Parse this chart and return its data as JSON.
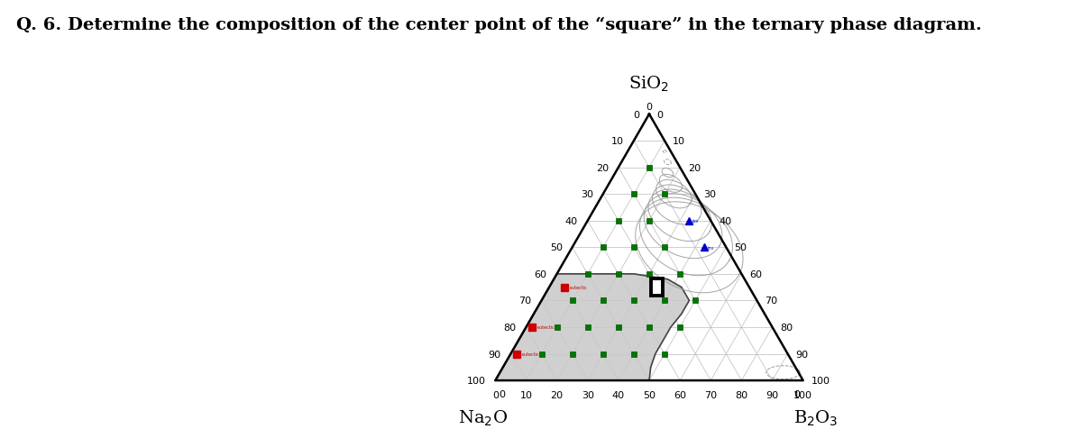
{
  "title": "Q. 6. Determine the composition of the center point of the “square” in the ternary phase diagram.",
  "grid_color": "#bbbbbb",
  "grid_linewidth": 0.5,
  "triangle_linewidth": 1.8,
  "triangle_color": "#000000",
  "background_color": "#ffffff",
  "shaded_region_color": "#c8c8c8",
  "shaded_region_alpha": 0.85,
  "curve_color": "#999999",
  "fontsize_title": 14,
  "fontsize_labels": 13,
  "fontsize_ticks": 8,
  "green_dot_sio2": [
    10,
    10,
    10,
    10,
    10,
    20,
    20,
    20,
    20,
    20,
    30,
    30,
    30,
    30,
    30,
    40,
    40,
    40,
    40,
    50,
    50,
    50,
    60,
    60,
    70,
    70,
    80
  ],
  "green_dot_na2o": [
    80,
    70,
    60,
    50,
    40,
    70,
    60,
    50,
    40,
    30,
    60,
    50,
    40,
    30,
    20,
    50,
    40,
    30,
    20,
    40,
    30,
    20,
    30,
    20,
    20,
    10,
    10
  ],
  "red_points_sio2": [
    35,
    20,
    10
  ],
  "red_points_na2o": [
    60,
    78,
    88
  ],
  "blue_points_sio2": [
    50,
    60
  ],
  "blue_points_na2o": [
    7,
    7
  ],
  "square_sio2": 35,
  "square_na2o": 30,
  "square_b2o3": 35
}
